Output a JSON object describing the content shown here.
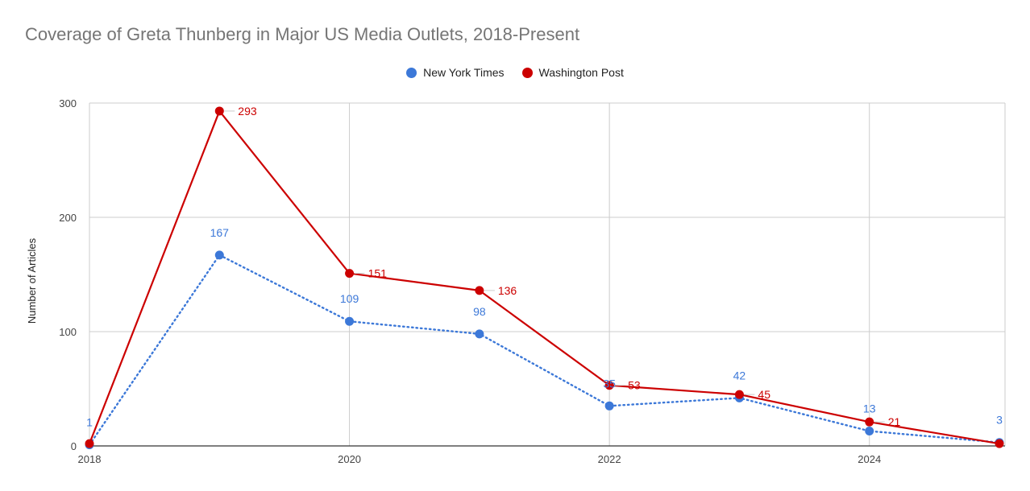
{
  "chart_data": {
    "type": "line",
    "title": "Coverage of Greta Thunberg in Major US Media Outlets, 2018-Present",
    "xlabel": "",
    "ylabel": "Number of Articles",
    "x": [
      2018,
      2019,
      2020,
      2021,
      2022,
      2023,
      2024,
      2025
    ],
    "xticks": [
      "2018",
      "2020",
      "2022",
      "2024"
    ],
    "xlim": [
      2018,
      2025
    ],
    "yticks": [
      "0",
      "100",
      "200",
      "300"
    ],
    "ylim": [
      0,
      300
    ],
    "grid": true,
    "legend_position": "top-center",
    "series": [
      {
        "name": "New York Times",
        "color": "#3c78d8",
        "line_style": "dotted",
        "values": [
          1,
          167,
          109,
          98,
          35,
          42,
          13,
          3
        ],
        "labels": [
          "1",
          "167",
          "109",
          "98",
          "35",
          "42",
          "13",
          "3"
        ]
      },
      {
        "name": "Washington Post",
        "color": "#cc0000",
        "line_style": "solid",
        "values": [
          2,
          293,
          151,
          136,
          53,
          45,
          21,
          2
        ],
        "labels": [
          "",
          "293",
          "151",
          "136",
          "53",
          "45",
          "21",
          ""
        ]
      }
    ]
  }
}
